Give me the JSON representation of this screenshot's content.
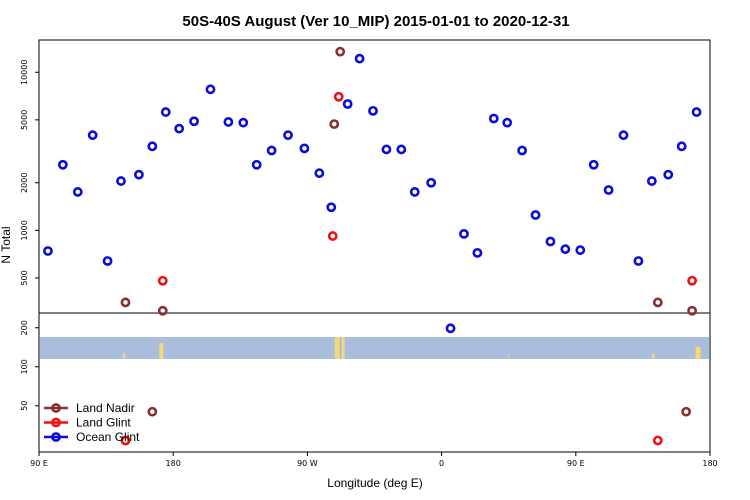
{
  "chart_data": {
    "type": "scatter",
    "title": "50S-40S August (Ver 10_MIP)   2015-01-01 to 2020-12-31",
    "xlabel": "Longitude (deg E)",
    "ylabel": "N Total",
    "x_ticks": [
      {
        "value": 90,
        "label": "90 E"
      },
      {
        "value": 180,
        "label": "180"
      },
      {
        "value": 270,
        "label": "90 W"
      },
      {
        "value": 360,
        "label": "0"
      },
      {
        "value": 450,
        "label": "90 E"
      },
      {
        "value": 540,
        "label": "180"
      }
    ],
    "xlim": [
      90,
      540
    ],
    "top_panel": {
      "yscale": "log",
      "ylim": [
        300,
        16000
      ],
      "y_ticks": [
        500,
        1000,
        2000,
        5000,
        10000
      ],
      "y_tick_labels": [
        "500",
        "1000",
        "2000",
        "5000",
        "10000"
      ]
    },
    "bottom_panel": {
      "yscale": "log",
      "ylim": [
        22,
        260
      ],
      "y_ticks": [
        50,
        100,
        200
      ],
      "y_tick_labels": [
        "50",
        "100",
        "200"
      ],
      "land_strip": {
        "ocean_color": "#a8bedc",
        "land_color": "#f7d77a"
      }
    },
    "series": [
      {
        "name": "Land Nadir",
        "color": "#8b2e2e",
        "top": [
          [
            148,
            350
          ],
          [
            173,
            310
          ],
          [
            288,
            4700
          ],
          [
            292,
            13500
          ],
          [
            505,
            350
          ],
          [
            528,
            310
          ]
        ],
        "bottom": [
          [
            166,
            45
          ],
          [
            524,
            45
          ]
        ]
      },
      {
        "name": "Land Glint",
        "color": "#ee1111",
        "top": [
          [
            173,
            480
          ],
          [
            287,
            920
          ],
          [
            291,
            7000
          ],
          [
            528,
            480
          ]
        ],
        "bottom": [
          [
            148,
            27
          ],
          [
            505,
            27
          ]
        ]
      },
      {
        "name": "Ocean Glint",
        "color": "#0b0bdd",
        "top": [
          [
            96,
            740
          ],
          [
            106,
            2600
          ],
          [
            116,
            1750
          ],
          [
            126,
            4000
          ],
          [
            136,
            640
          ],
          [
            145,
            2050
          ],
          [
            157,
            2250
          ],
          [
            166,
            3400
          ],
          [
            175,
            5600
          ],
          [
            184,
            4400
          ],
          [
            194,
            4900
          ],
          [
            205,
            7800
          ],
          [
            217,
            4850
          ],
          [
            227,
            4800
          ],
          [
            236,
            2600
          ],
          [
            246,
            3200
          ],
          [
            257,
            4000
          ],
          [
            268,
            3300
          ],
          [
            278,
            2300
          ],
          [
            286,
            1400
          ],
          [
            297,
            6300
          ],
          [
            305,
            12200
          ],
          [
            314,
            5700
          ],
          [
            323,
            3250
          ],
          [
            333,
            3250
          ],
          [
            342,
            1750
          ],
          [
            353,
            2000
          ],
          [
            375,
            950
          ],
          [
            384,
            720
          ],
          [
            395,
            5100
          ],
          [
            404,
            4800
          ],
          [
            414,
            3200
          ],
          [
            423,
            1250
          ],
          [
            433,
            850
          ],
          [
            443,
            760
          ],
          [
            453,
            750
          ],
          [
            462,
            2600
          ],
          [
            472,
            1800
          ],
          [
            482,
            4000
          ],
          [
            492,
            640
          ],
          [
            501,
            2050
          ],
          [
            512,
            2250
          ],
          [
            521,
            3400
          ],
          [
            531,
            5600
          ]
        ],
        "bottom": [
          [
            366,
            198
          ]
        ]
      }
    ],
    "legend": {
      "position": "lower-left",
      "entries": [
        "Land Nadir",
        "Land Glint",
        "Ocean Glint"
      ]
    }
  }
}
